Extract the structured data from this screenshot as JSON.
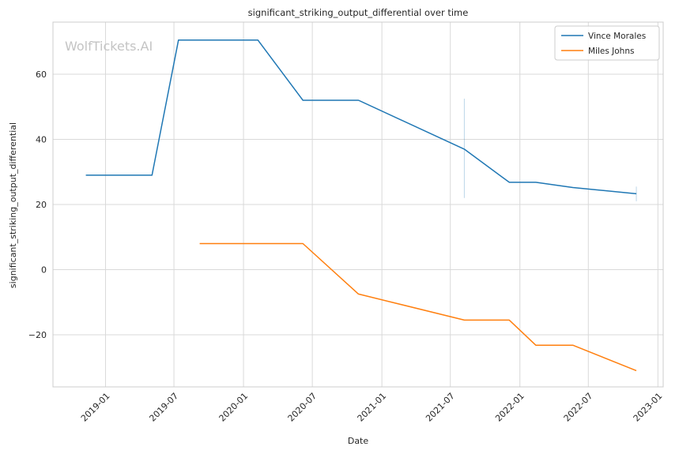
{
  "watermark": "WolfTickets.AI",
  "chart_data": {
    "type": "line",
    "title": "significant_striking_output_differential over time",
    "xlabel": "Date",
    "ylabel": "significant_striking_output_differential",
    "x_axis_type": "date",
    "xlim": [
      "2018-08-15",
      "2023-01-15"
    ],
    "ylim": [
      -36,
      76
    ],
    "x_ticks": [
      "2019-01",
      "2019-07",
      "2020-01",
      "2020-07",
      "2021-01",
      "2021-07",
      "2022-01",
      "2022-07",
      "2023-01"
    ],
    "x_tick_dates": [
      "2019-01-01",
      "2019-07-01",
      "2020-01-01",
      "2020-07-01",
      "2021-01-01",
      "2021-07-01",
      "2022-01-01",
      "2022-07-01",
      "2023-01-01"
    ],
    "y_ticks": [
      -20,
      0,
      20,
      40,
      60
    ],
    "grid": true,
    "legend_position": "top-right",
    "colors": {
      "vince": "#1f77b4",
      "miles": "#ff7f0e",
      "grid": "#d9d9d9",
      "spine": "#cccccc"
    },
    "series": [
      {
        "name": "Vince Morales",
        "color": "#1f77b4",
        "x": [
          "2018-11-10",
          "2019-05-04",
          "2019-07-13",
          "2020-02-08",
          "2020-06-06",
          "2020-10-31",
          "2021-08-07",
          "2021-12-04",
          "2022-02-12",
          "2022-05-21",
          "2022-11-05"
        ],
        "y": [
          29,
          29,
          70.5,
          70.5,
          52,
          52,
          37,
          26.8,
          26.8,
          25.2,
          23.3
        ],
        "error_bars": [
          {
            "x": "2021-08-07",
            "low": 22,
            "high": 52.5
          },
          {
            "x": "2022-11-05",
            "low": 21,
            "high": 25.5
          }
        ]
      },
      {
        "name": "Miles Johns",
        "color": "#ff7f0e",
        "x": [
          "2019-09-07",
          "2020-06-06",
          "2020-10-31",
          "2021-08-07",
          "2021-12-04",
          "2022-02-12",
          "2022-05-21",
          "2022-11-05"
        ],
        "y": [
          8,
          8,
          -7.5,
          -15.5,
          -15.5,
          -23.2,
          -23.2,
          -31
        ]
      }
    ]
  }
}
